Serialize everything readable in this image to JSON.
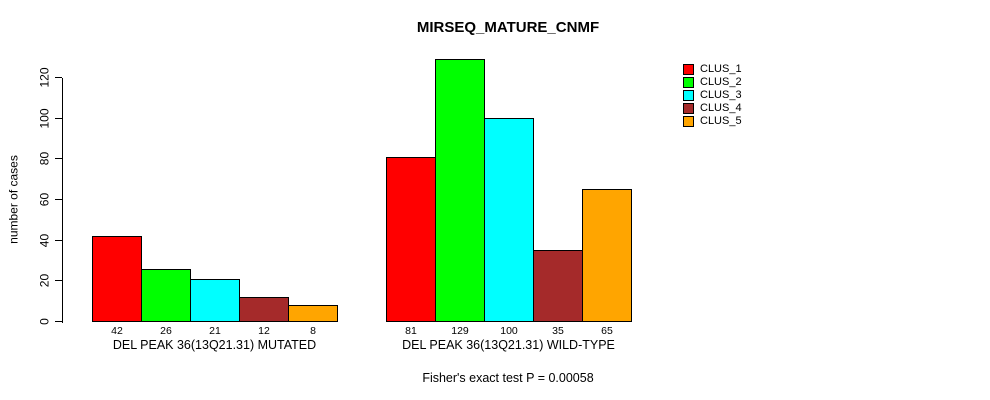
{
  "chart_data": {
    "type": "bar",
    "title": "MIRSEQ_MATURE_CNMF",
    "ylabel": "number of cases",
    "xlabel": "",
    "yticks": [
      0,
      20,
      40,
      60,
      80,
      100,
      120
    ],
    "ylim": [
      0,
      130
    ],
    "grid": false,
    "legend_position": "right-inside-top",
    "series": [
      {
        "name": "CLUS_1",
        "color": "#FF0000"
      },
      {
        "name": "CLUS_2",
        "color": "#00FF00"
      },
      {
        "name": "CLUS_3",
        "color": "#00FFFF"
      },
      {
        "name": "CLUS_4",
        "color": "#A52A2A"
      },
      {
        "name": "CLUS_5",
        "color": "#FFA500"
      }
    ],
    "groups": [
      {
        "label": "DEL PEAK 36(13Q21.31) MUTATED",
        "values": [
          42,
          26,
          21,
          12,
          8
        ]
      },
      {
        "label": "DEL PEAK 36(13Q21.31) WILD-TYPE",
        "values": [
          81,
          129,
          100,
          35,
          65
        ]
      }
    ],
    "annotation": "Fisher's exact test P = 0.00058"
  }
}
